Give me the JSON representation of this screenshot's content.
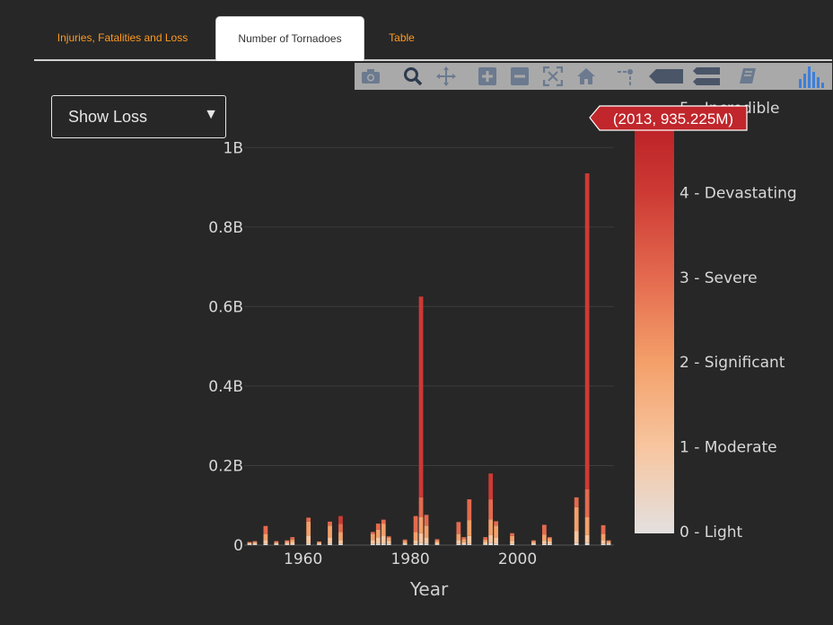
{
  "tabs": [
    {
      "label": "Injuries, Fatalities and Loss",
      "active": false
    },
    {
      "label": "Number of Tornadoes",
      "active": true
    },
    {
      "label": "Table",
      "active": false
    }
  ],
  "modebar": {
    "buttons": [
      "camera-icon",
      "zoom-icon",
      "pan-icon",
      "zoom-in-icon",
      "zoom-out-icon",
      "autoscale-icon",
      "reset-axes-icon",
      "spike-lines-icon",
      "hover-closest-icon",
      "hover-compare-icon",
      "notebook-icon",
      "plotly-logo-icon"
    ]
  },
  "dropdown": {
    "selected": "Show Loss"
  },
  "tooltip": {
    "text": "(2013, 935.225M)"
  },
  "colors": {
    "light": "#e3e0df",
    "moderate": "#f7c6a0",
    "significant": "#f4a06a",
    "severe": "#e46a4f",
    "devastating": "#cd3a34",
    "incredible": "#b81b25"
  },
  "chart_data": {
    "type": "bar",
    "stacked": true,
    "xlabel": "Year",
    "ylabel": "",
    "xlim": [
      1949,
      2018
    ],
    "ylim": [
      0,
      1.1
    ],
    "x_ticks": [
      "1960",
      "1980",
      "2000"
    ],
    "x_tick_values": [
      1960,
      1980,
      2000
    ],
    "y_ticks": [
      "0",
      "0.2B",
      "0.4B",
      "0.6B",
      "0.8B",
      "1B"
    ],
    "y_tick_values": [
      0,
      0.2,
      0.4,
      0.6,
      0.8,
      1.0
    ],
    "units": "billions",
    "colorbar": {
      "labels": [
        "0 - Light",
        "1 - Moderate",
        "2 - Significant",
        "3 - Severe",
        "4 - Devastating",
        "5 - Incredible"
      ],
      "values": [
        0,
        1,
        2,
        3,
        4,
        5
      ]
    },
    "series_order": [
      "light",
      "moderate",
      "significant",
      "severe",
      "devastating",
      "incredible"
    ],
    "bars": [
      {
        "year": 1950,
        "light": 0.002,
        "moderate": 0.003,
        "significant": 0.002,
        "severe": 0.001,
        "devastating": 0,
        "incredible": 0
      },
      {
        "year": 1951,
        "light": 0.002,
        "moderate": 0.004,
        "significant": 0.002,
        "severe": 0.002,
        "devastating": 0,
        "incredible": 0
      },
      {
        "year": 1953,
        "light": 0.003,
        "moderate": 0.01,
        "significant": 0.015,
        "severe": 0.02,
        "devastating": 0,
        "incredible": 0
      },
      {
        "year": 1955,
        "light": 0.002,
        "moderate": 0.003,
        "significant": 0.003,
        "severe": 0.002,
        "devastating": 0,
        "incredible": 0
      },
      {
        "year": 1957,
        "light": 0.002,
        "moderate": 0.004,
        "significant": 0.004,
        "severe": 0.002,
        "devastating": 0,
        "incredible": 0
      },
      {
        "year": 1958,
        "light": 0.002,
        "moderate": 0.006,
        "significant": 0.006,
        "severe": 0.006,
        "devastating": 0,
        "incredible": 0
      },
      {
        "year": 1961,
        "light": 0.004,
        "moderate": 0.02,
        "significant": 0.035,
        "severe": 0.01,
        "devastating": 0,
        "incredible": 0
      },
      {
        "year": 1963,
        "light": 0.002,
        "moderate": 0.003,
        "significant": 0.003,
        "severe": 0.001,
        "devastating": 0,
        "incredible": 0
      },
      {
        "year": 1965,
        "light": 0.004,
        "moderate": 0.015,
        "significant": 0.03,
        "severe": 0.01,
        "devastating": 0,
        "incredible": 0
      },
      {
        "year": 1967,
        "light": 0.003,
        "moderate": 0.01,
        "significant": 0.02,
        "severe": 0.02,
        "devastating": 0.02,
        "incredible": 0
      },
      {
        "year": 1973,
        "light": 0.003,
        "moderate": 0.01,
        "significant": 0.015,
        "severe": 0.005,
        "devastating": 0,
        "incredible": 0
      },
      {
        "year": 1974,
        "light": 0.004,
        "moderate": 0.015,
        "significant": 0.02,
        "severe": 0.015,
        "devastating": 0,
        "incredible": 0
      },
      {
        "year": 1975,
        "light": 0.004,
        "moderate": 0.02,
        "significant": 0.03,
        "severe": 0.01,
        "devastating": 0,
        "incredible": 0
      },
      {
        "year": 1976,
        "light": 0.003,
        "moderate": 0.008,
        "significant": 0.008,
        "severe": 0.003,
        "devastating": 0,
        "incredible": 0
      },
      {
        "year": 1979,
        "light": 0.002,
        "moderate": 0.004,
        "significant": 0.005,
        "severe": 0.003,
        "devastating": 0,
        "incredible": 0
      },
      {
        "year": 1981,
        "light": 0.003,
        "moderate": 0.01,
        "significant": 0.02,
        "severe": 0.04,
        "devastating": 0,
        "incredible": 0
      },
      {
        "year": 1982,
        "light": 0.005,
        "moderate": 0.025,
        "significant": 0.04,
        "severe": 0.05,
        "devastating": 0.505,
        "incredible": 0
      },
      {
        "year": 1983,
        "light": 0.004,
        "moderate": 0.015,
        "significant": 0.03,
        "severe": 0.027,
        "devastating": 0,
        "incredible": 0
      },
      {
        "year": 1985,
        "light": 0.002,
        "moderate": 0.005,
        "significant": 0.005,
        "severe": 0.003,
        "devastating": 0,
        "incredible": 0
      },
      {
        "year": 1989,
        "light": 0.003,
        "moderate": 0.01,
        "significant": 0.015,
        "severe": 0.03,
        "devastating": 0,
        "incredible": 0
      },
      {
        "year": 1990,
        "light": 0.002,
        "moderate": 0.005,
        "significant": 0.008,
        "severe": 0.005,
        "devastating": 0,
        "incredible": 0
      },
      {
        "year": 1991,
        "light": 0.003,
        "moderate": 0.02,
        "significant": 0.04,
        "severe": 0.052,
        "devastating": 0,
        "incredible": 0
      },
      {
        "year": 1994,
        "light": 0.002,
        "moderate": 0.006,
        "significant": 0.006,
        "severe": 0.006,
        "devastating": 0,
        "incredible": 0
      },
      {
        "year": 1995,
        "light": 0.005,
        "moderate": 0.02,
        "significant": 0.04,
        "severe": 0.05,
        "devastating": 0.065,
        "incredible": 0
      },
      {
        "year": 1996,
        "light": 0.004,
        "moderate": 0.015,
        "significant": 0.03,
        "severe": 0.011,
        "devastating": 0,
        "incredible": 0
      },
      {
        "year": 1999,
        "light": 0.003,
        "moderate": 0.008,
        "significant": 0.012,
        "severe": 0.007,
        "devastating": 0,
        "incredible": 0
      },
      {
        "year": 2003,
        "light": 0.002,
        "moderate": 0.004,
        "significant": 0.004,
        "severe": 0.002,
        "devastating": 0,
        "incredible": 0
      },
      {
        "year": 2005,
        "light": 0.003,
        "moderate": 0.008,
        "significant": 0.015,
        "severe": 0.025,
        "devastating": 0,
        "incredible": 0
      },
      {
        "year": 2006,
        "light": 0.003,
        "moderate": 0.006,
        "significant": 0.008,
        "severe": 0.003,
        "devastating": 0,
        "incredible": 0
      },
      {
        "year": 2011,
        "light": 0.005,
        "moderate": 0.03,
        "significant": 0.06,
        "severe": 0.025,
        "devastating": 0,
        "incredible": 0
      },
      {
        "year": 2013,
        "light": 0.005,
        "moderate": 0.02,
        "significant": 0.045,
        "severe": 0.07,
        "devastating": 0.795,
        "incredible": 0
      },
      {
        "year": 2016,
        "light": 0.003,
        "moderate": 0.01,
        "significant": 0.015,
        "severe": 0.022,
        "devastating": 0,
        "incredible": 0
      },
      {
        "year": 2017,
        "light": 0.002,
        "moderate": 0.004,
        "significant": 0.004,
        "severe": 0.002,
        "devastating": 0,
        "incredible": 0
      }
    ]
  }
}
